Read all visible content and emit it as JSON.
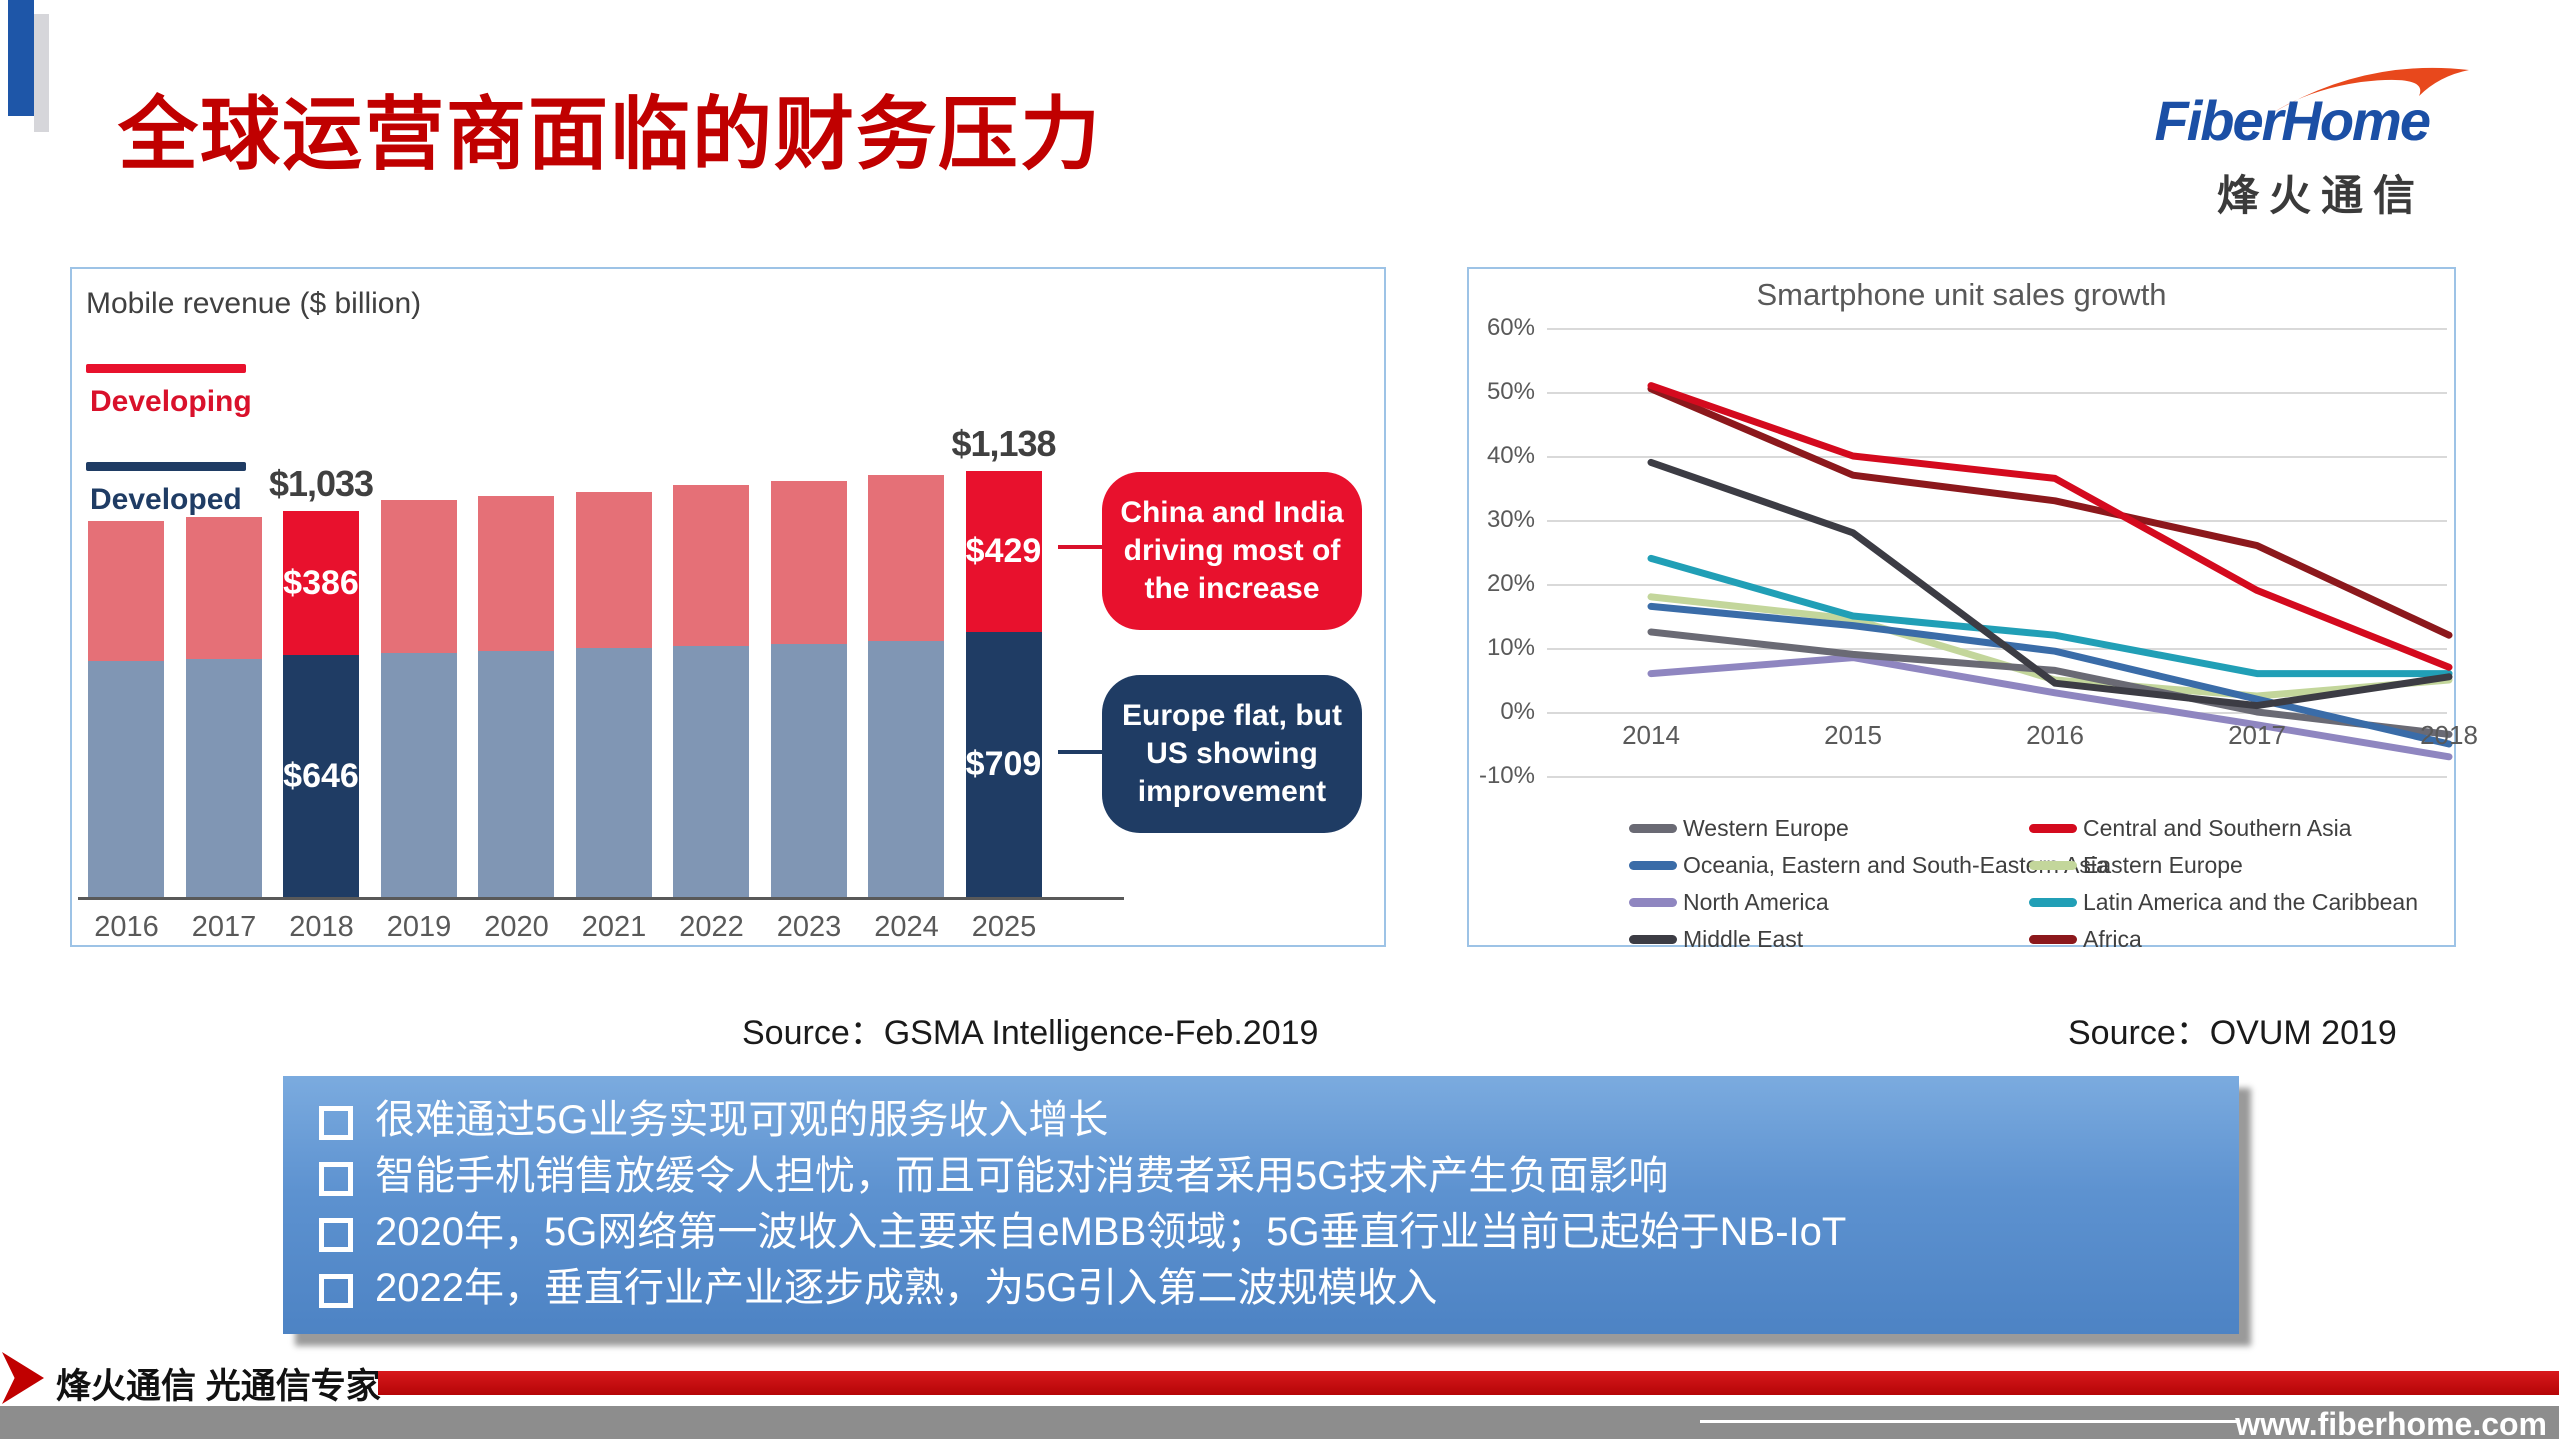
{
  "slide": {
    "title": "全球运营商面临的财务压力",
    "title_color": "#c00000"
  },
  "logo": {
    "brand": "FiberHome",
    "brand_cn": "烽火通信",
    "brand_color": "#1b4fa5",
    "swoosh_color": "#e8481c"
  },
  "sources": {
    "left": "Source：GSMA Intelligence-Feb.2019",
    "right": "Source：OVUM 2019"
  },
  "bullets": [
    "很难通过5G业务实现可观的服务收入增长",
    "智能手机销售放缓令人担忧，而且可能对消费者采用5G技术产生负面影响",
    "2020年，5G网络第一波收入主要来自eMBB领域；5G垂直行业当前已起始于NB-IoT",
    "2022年，垂直行业产业逐步成熟，为5G引入第二波规模收入"
  ],
  "footer": {
    "tagline": "烽火通信 光通信专家",
    "website": "www.fiberhome.com"
  },
  "chart_data": [
    {
      "type": "bar",
      "stacked": true,
      "title": "Mobile revenue ($ billion)",
      "categories": [
        "2016",
        "2017",
        "2018",
        "2019",
        "2020",
        "2021",
        "2022",
        "2023",
        "2024",
        "2025"
      ],
      "series": [
        {
          "name": "Developed",
          "color_muted": "#8096b4",
          "color_highlight": "#1f3c64",
          "values": [
            630,
            636,
            646,
            652,
            658,
            664,
            670,
            676,
            684,
            709
          ]
        },
        {
          "name": "Developing",
          "color_muted": "#e57077",
          "color_highlight": "#e8112d",
          "values": [
            374,
            378,
            386,
            408,
            412,
            417,
            431,
            435,
            444,
            429
          ]
        }
      ],
      "highlighted_categories": [
        "2018",
        "2025"
      ],
      "bar_labels": {
        "2018": {
          "total": "$1,033",
          "developing": "$386",
          "developed": "$646"
        },
        "2025": {
          "total": "$1,138",
          "developing": "$429",
          "developed": "$709"
        }
      },
      "annotations": [
        {
          "text": "China and India driving most of the increase",
          "color": "#e8112d",
          "points_to": "2025 developing segment"
        },
        {
          "text": "Europe flat, but US showing improvement",
          "color": "#1f3c64",
          "points_to": "2025 developed segment"
        }
      ]
    },
    {
      "type": "line",
      "title": "Smartphone unit sales growth",
      "x": [
        "2014",
        "2015",
        "2016",
        "2017",
        "2018"
      ],
      "ylabel_ticks": [
        "60%",
        "50%",
        "40%",
        "30%",
        "20%",
        "10%",
        "0%",
        "-10%"
      ],
      "ylim": [
        -10,
        60
      ],
      "grid": true,
      "legend_position": "bottom",
      "series": [
        {
          "name": "Western Europe",
          "color": "#6a6a74",
          "values": [
            12.5,
            9,
            6.5,
            0,
            -3.5
          ]
        },
        {
          "name": "Central and Southern Asia",
          "color": "#d40a1e",
          "values": [
            51,
            40,
            36.5,
            19,
            7
          ]
        },
        {
          "name": "Oceania, Eastern and South-Eastern Asia",
          "color": "#3a6ca8",
          "values": [
            16.5,
            13.5,
            9.5,
            2,
            -5
          ]
        },
        {
          "name": "Eastern Europe",
          "color": "#c3d69b",
          "values": [
            18,
            14.5,
            5,
            2.5,
            5
          ]
        },
        {
          "name": "North America",
          "color": "#8f86c0",
          "values": [
            6,
            8.5,
            3,
            -2,
            -7
          ]
        },
        {
          "name": "Latin America and the Caribbean",
          "color": "#219fb6",
          "values": [
            24,
            15,
            12,
            6,
            6
          ]
        },
        {
          "name": "Middle East",
          "color": "#3c3c44",
          "values": [
            39,
            28,
            4.5,
            1,
            5.5
          ]
        },
        {
          "name": "Africa",
          "color": "#8c181c",
          "values": [
            50.5,
            37,
            33,
            26,
            12
          ]
        }
      ]
    }
  ],
  "colors": {
    "title_red": "#c00000",
    "panel_border": "#9dc3e6",
    "bullet_box_top": "#7babdf",
    "bullet_box_bottom": "#4d83c4",
    "footer_red": "#c00000",
    "footer_gray": "#8d8d8d"
  }
}
